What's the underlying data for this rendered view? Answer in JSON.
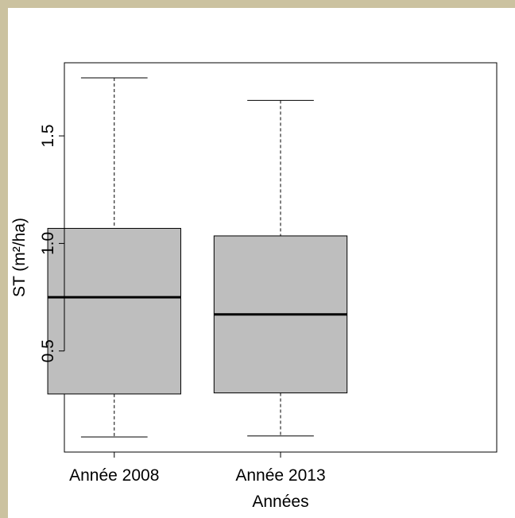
{
  "colors": {
    "background_border": "#cbc2a0",
    "plot_background": "#ffffff",
    "box_fill": "#bebebe",
    "stroke": "#000000"
  },
  "chart_data": {
    "type": "boxplot",
    "title": "",
    "xlabel": "Années",
    "ylabel": "ST (m²/ha)",
    "categories": [
      "Année 2008",
      "Année 2013"
    ],
    "boxes": [
      {
        "category": "Année 2008",
        "whisker_low": 0.1,
        "q1": 0.3,
        "median": 0.75,
        "q3": 1.07,
        "whisker_high": 1.77
      },
      {
        "category": "Année 2013",
        "whisker_low": 0.105,
        "q1": 0.305,
        "median": 0.67,
        "q3": 1.035,
        "whisker_high": 1.665
      }
    ],
    "y_ticks": [
      0.5,
      1.0,
      1.5
    ],
    "y_tick_labels": [
      "0.5",
      "1.0",
      "1.5"
    ],
    "ylim": [
      0.03,
      1.84
    ],
    "grid": false,
    "legend": "none"
  }
}
